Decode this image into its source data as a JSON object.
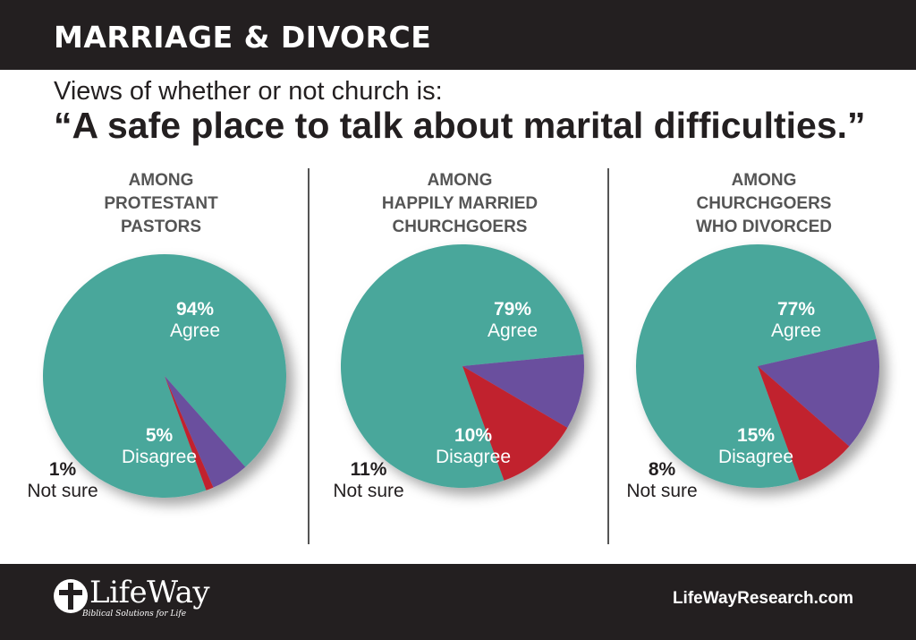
{
  "header": {
    "title": "MARRIAGE & DIVORCE"
  },
  "subtitle": "Views of whether or not church is:",
  "question": "“A safe place to talk about marital difficulties.”",
  "colors": {
    "agree": "#4aa79b",
    "disagree": "#6b4f9e",
    "not_sure": "#c1202f",
    "header_bg": "#231f20"
  },
  "chart_data": [
    {
      "type": "pie",
      "title": [
        "AMONG",
        "PROTESTANT",
        "PASTORS"
      ],
      "slices": [
        {
          "name": "Agree",
          "value": 94,
          "label": "94%"
        },
        {
          "name": "Disagree",
          "value": 5,
          "label": "5%"
        },
        {
          "name": "Not sure",
          "value": 1,
          "label": "1%"
        }
      ]
    },
    {
      "type": "pie",
      "title": [
        "AMONG",
        "HAPPILY MARRIED",
        "CHURCHGOERS"
      ],
      "slices": [
        {
          "name": "Agree",
          "value": 79,
          "label": "79%"
        },
        {
          "name": "Disagree",
          "value": 10,
          "label": "10%"
        },
        {
          "name": "Not sure",
          "value": 11,
          "label": "11%"
        }
      ]
    },
    {
      "type": "pie",
      "title": [
        "AMONG",
        "CHURCHGOERS",
        "WHO DIVORCED"
      ],
      "slices": [
        {
          "name": "Agree",
          "value": 77,
          "label": "77%"
        },
        {
          "name": "Disagree",
          "value": 15,
          "label": "15%"
        },
        {
          "name": "Not sure",
          "value": 8,
          "label": "8%"
        }
      ]
    }
  ],
  "footer": {
    "logo_text": "LifeWay",
    "tagline": "Biblical Solutions for Life",
    "url": "LifeWayResearch.com"
  }
}
